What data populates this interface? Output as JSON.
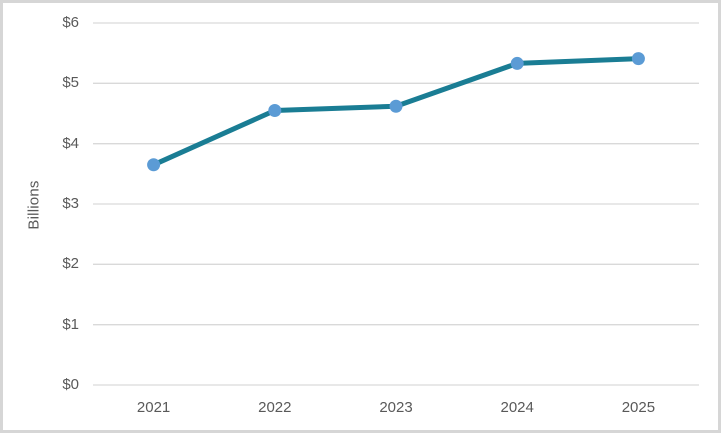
{
  "chart_data": {
    "type": "line",
    "title": "",
    "categories": [
      "2021",
      "2022",
      "2023",
      "2024",
      "2025"
    ],
    "series": [
      {
        "name": "Value",
        "values": [
          3.65,
          4.55,
          4.62,
          5.33,
          5.41
        ]
      }
    ],
    "xlabel": "",
    "ylabel": "Billions",
    "ylim": [
      0,
      6
    ],
    "y_ticks": {
      "values": [
        0,
        1,
        2,
        3,
        4,
        5,
        6
      ],
      "labels": [
        "$0",
        "$1",
        "$2",
        "$3",
        "$4",
        "$5",
        "$6"
      ]
    },
    "grid": "horizontal",
    "legend": "none",
    "markers": true,
    "colors": {
      "line": "#1a7d94",
      "marker": "#5b9bd5",
      "gridline": "#d9d9d9",
      "axis_text": "#595959",
      "border": "#d6d6d6",
      "background": "#ffffff"
    }
  }
}
